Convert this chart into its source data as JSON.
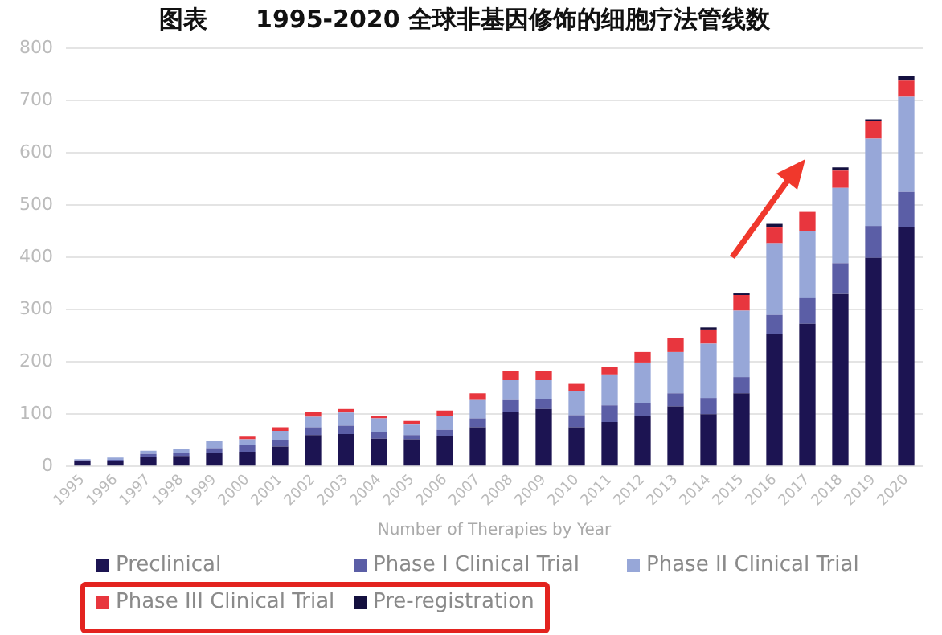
{
  "chart_data": {
    "type": "bar",
    "title": "图表　　1995-2020 全球非基因修饰的细胞疗法管线数",
    "xlabel": "Number of Therapies by Year",
    "categories": [
      "1995",
      "1996",
      "1997",
      "1998",
      "1999",
      "2000",
      "2001",
      "2002",
      "2003",
      "2004",
      "2005",
      "2006",
      "2007",
      "2008",
      "2009",
      "2010",
      "2011",
      "2012",
      "2013",
      "2014",
      "2015",
      "2016",
      "2017",
      "2018",
      "2019",
      "2020"
    ],
    "stacked": true,
    "grid": "y",
    "legend": "bottom",
    "ylim": [
      0,
      800
    ],
    "yticks": [
      0,
      100,
      200,
      300,
      400,
      500,
      600,
      700,
      800
    ],
    "series": [
      {
        "name": "Preclinical",
        "color": "#1c1452",
        "values": [
          10,
          10,
          18,
          20,
          25,
          28,
          38,
          60,
          62,
          53,
          52,
          58,
          75,
          104,
          110,
          75,
          85,
          97,
          115,
          100,
          140,
          253,
          273,
          330,
          399,
          457
        ]
      },
      {
        "name": "Phase I Clinical Trial",
        "color": "#5b5ea6",
        "values": [
          2,
          3,
          6,
          6,
          10,
          14,
          12,
          15,
          16,
          12,
          8,
          12,
          17,
          23,
          19,
          23,
          32,
          25,
          25,
          31,
          31,
          37,
          49,
          59,
          61,
          68
        ]
      },
      {
        "name": "Phase II Clinical Trial",
        "color": "#97a7d8",
        "values": [
          2,
          4,
          6,
          8,
          13,
          10,
          18,
          20,
          25,
          27,
          20,
          27,
          35,
          38,
          36,
          46,
          59,
          77,
          79,
          104,
          127,
          137,
          129,
          144,
          167,
          182
        ]
      },
      {
        "name": "Phase III Clinical Trial",
        "color": "#e8363e",
        "values": [
          0,
          0,
          0,
          0,
          0,
          5,
          7,
          10,
          7,
          5,
          7,
          10,
          13,
          17,
          17,
          14,
          15,
          20,
          27,
          27,
          30,
          30,
          36,
          33,
          33,
          31
        ]
      },
      {
        "name": "Pre-registration",
        "color": "#14103f",
        "values": [
          0,
          0,
          0,
          0,
          0,
          0,
          0,
          0,
          0,
          0,
          0,
          0,
          0,
          0,
          0,
          0,
          0,
          0,
          0,
          4,
          3,
          7,
          0,
          6,
          4,
          8
        ]
      }
    ]
  }
}
